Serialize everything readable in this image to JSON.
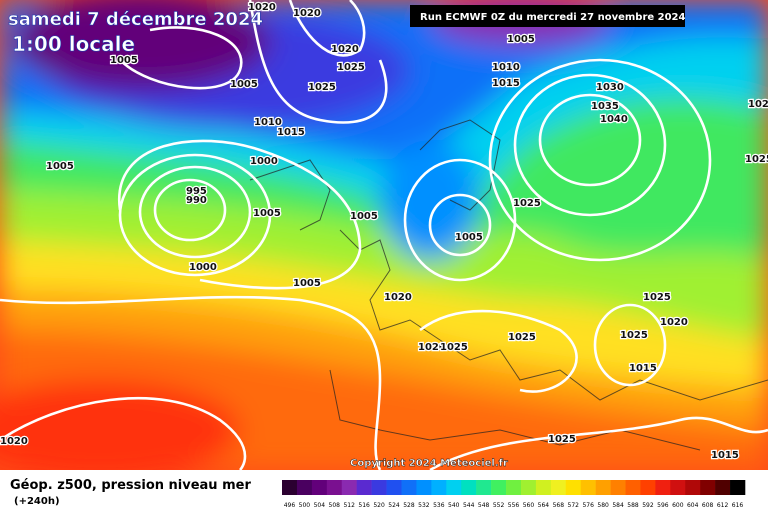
{
  "header": {
    "title": "samedi 7 décembre 2024",
    "subtitle": "1:00 locale",
    "run": "Run ECMWF 0Z du mercredi 27 novembre 2024"
  },
  "footer": {
    "title": "Géop. z500, pression niveau mer",
    "lead": "(+240h)",
    "copyright": "Copyright 2024 Meteociel.fr"
  },
  "isobar_labels": [
    "1020",
    "1020",
    "1005",
    "1005",
    "1020",
    "1025",
    "1025",
    "1010",
    "1015",
    "1000",
    "1005",
    "995",
    "990",
    "1005",
    "1005",
    "1000",
    "1005",
    "1005",
    "1025",
    "1005",
    "1010",
    "1015",
    "1030",
    "1035",
    "1040",
    "1020",
    "1020",
    "1025",
    "1025",
    "1025",
    "1025",
    "1020",
    "1015",
    "1025",
    "1015",
    "1020",
    "1025",
    "1025"
  ],
  "legend": {
    "labels": [
      496,
      500,
      504,
      508,
      512,
      516,
      520,
      524,
      528,
      532,
      536,
      540,
      544,
      548,
      552,
      556,
      560,
      564,
      568,
      572,
      576,
      580,
      584,
      588,
      592,
      596,
      600,
      604,
      608,
      612,
      616
    ],
    "colors": [
      "#2b0030",
      "#4a0060",
      "#62007a",
      "#7a1090",
      "#8a2ab0",
      "#5a2ad0",
      "#3a3ae0",
      "#2050f0",
      "#1070f8",
      "#0090ff",
      "#00b0ff",
      "#00d0f0",
      "#00e0c0",
      "#20e890",
      "#40f060",
      "#70f040",
      "#a0f030",
      "#d0f020",
      "#f0f020",
      "#ffe000",
      "#ffc000",
      "#ffa000",
      "#ff8000",
      "#ff6000",
      "#ff4000",
      "#f02010",
      "#d01010",
      "#b00808",
      "#800000",
      "#500000",
      "#000000"
    ]
  }
}
